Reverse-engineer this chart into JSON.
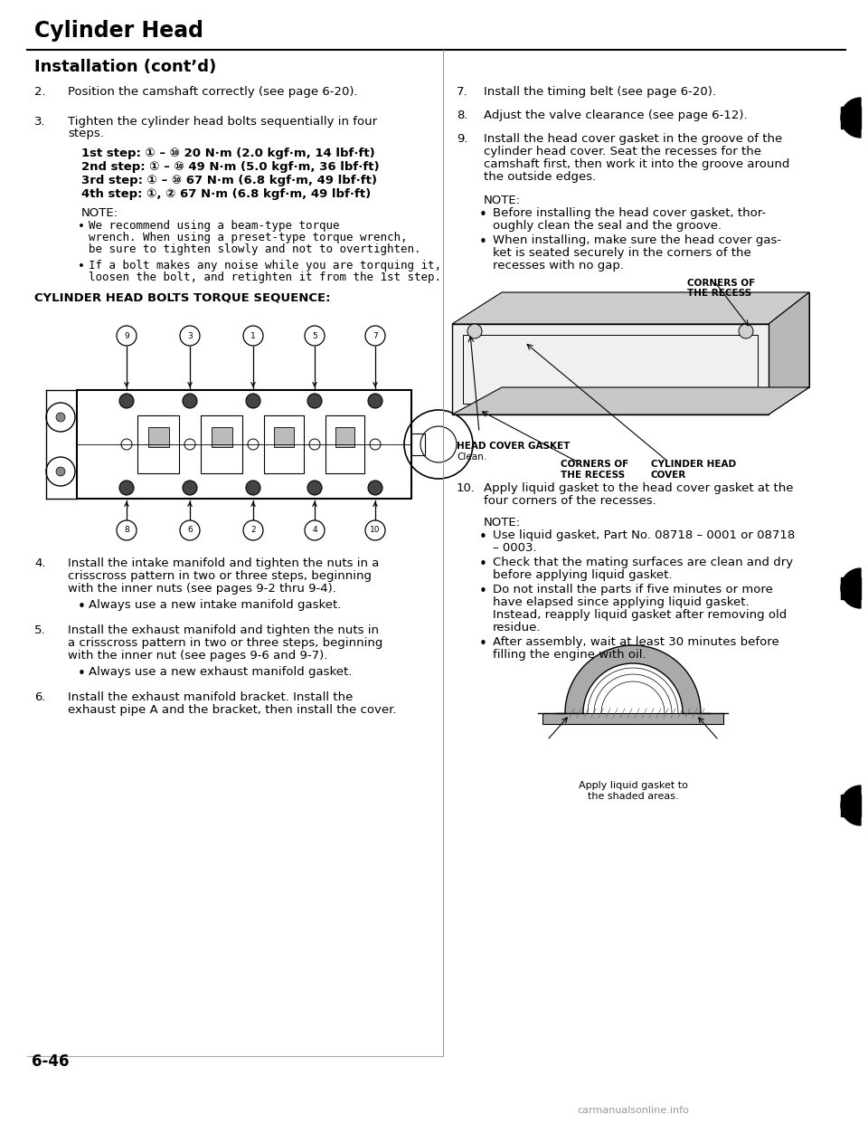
{
  "page_title": "Cylinder Head",
  "section_title": "Installation (cont’d)",
  "bg_color": "#ffffff",
  "footer": "6-46",
  "watermark": "carmanualsonline.info",
  "left_items_4_6": [
    {
      "num": "4.",
      "lines": [
        "Install the intake manifold and tighten the nuts in a",
        "crisscross pattern in two or three steps, beginning",
        "with the inner nuts (see pages 9-2 thru 9-4)."
      ],
      "bullet": "Always use a new intake manifold gasket."
    },
    {
      "num": "5.",
      "lines": [
        "Install the exhaust manifold and tighten the nuts in",
        "a crisscross pattern in two or three steps, beginning",
        "with the inner nut (see pages 9-6 and 9-7)."
      ],
      "bullet": "Always use a new exhaust manifold gasket."
    },
    {
      "num": "6.",
      "lines": [
        "Install the exhaust manifold bracket. Install the",
        "exhaust pipe A and the bracket, then install the cover."
      ],
      "bullet": null
    }
  ],
  "torque_top_nums": [
    "9",
    "3",
    "1",
    "5",
    "7"
  ],
  "torque_bot_nums": [
    "8",
    "6",
    "2",
    "4",
    "10"
  ],
  "right_items_7_9": [
    {
      "num": "7.",
      "lines": [
        "Install the timing belt (see page 6-20)."
      ]
    },
    {
      "num": "8.",
      "lines": [
        "Adjust the valve clearance (see page 6-12)."
      ]
    },
    {
      "num": "9.",
      "lines": [
        "Install the head cover gasket in the groove of the",
        "cylinder head cover. Seat the recesses for the",
        "camshaft first, then work it into the groove around",
        "the outside edges."
      ]
    }
  ],
  "note9_bullets": [
    "Before installing the head cover gasket, thor-\noughly clean the seal and the groove.",
    "When installing, make sure the head cover gas-\nket is seated securely in the corners of the\nrecesses with no gap."
  ],
  "item10": [
    "Apply liquid gasket to the head cover gasket at the",
    "four corners of the recesses."
  ],
  "note10_bullets": [
    "Use liquid gasket, Part No. 08718 – 0001 or 08718\n– 0003.",
    "Check that the mating surfaces are clean and dry\nbefore applying liquid gasket.",
    "Do not install the parts if five minutes or more\nhave elapsed since applying liquid gasket.\nInstead, reapply liquid gasket after removing old\nresidue.",
    "After assembly, wait at least 30 minutes before\nfilling the engine with oil."
  ],
  "left_steps": [
    "1st step: ① – ⑩ 20 N·m (2.0 kgf·m, 14 lbf·ft)",
    "2nd step: ① – ⑩ 49 N·m (5.0 kgf·m, 36 lbf·ft)",
    "3rd step: ① – ⑩ 67 N·m (6.8 kgf·m, 49 lbf·ft)",
    "4th step: ①, ② 67 N·m (6.8 kgf·m, 49 lbf·ft)"
  ]
}
